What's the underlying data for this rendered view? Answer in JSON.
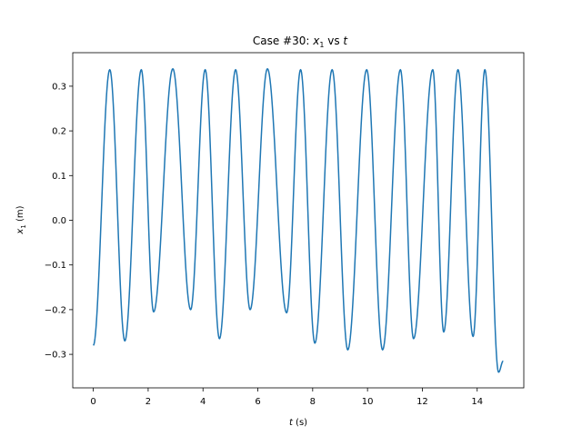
{
  "chart_data": {
    "type": "line",
    "title": {
      "prefix": "Case #30: ",
      "var": "x",
      "sub": "1",
      "mid": " vs ",
      "tvar": "t"
    },
    "xlabel": {
      "var": "t",
      "unit": " (s)"
    },
    "ylabel": {
      "var": "x",
      "sub": "1",
      "unit": " (m)"
    },
    "xlim": [
      -0.75,
      15.7
    ],
    "ylim": [
      -0.375,
      0.375
    ],
    "xticks": [
      0,
      2,
      4,
      6,
      8,
      10,
      12,
      14
    ],
    "xtick_labels": [
      "0",
      "2",
      "4",
      "6",
      "8",
      "10",
      "12",
      "14"
    ],
    "yticks": [
      -0.3,
      -0.2,
      -0.1,
      0.0,
      0.1,
      0.2,
      0.3
    ],
    "ytick_labels": [
      "−0.3",
      "−0.2",
      "−0.1",
      "0.0",
      "0.1",
      "0.2",
      "0.3"
    ],
    "grid": false,
    "legend": "none",
    "color": "#1f77b4",
    "series": [
      {
        "t_start": 0.0,
        "t_end": 14.95,
        "start_value": -0.28,
        "end_value": -0.315,
        "peaks": [
          {
            "t": 0.6,
            "v": 0.337
          },
          {
            "t": 1.75,
            "v": 0.337
          },
          {
            "t": 2.9,
            "v": 0.339
          },
          {
            "t": 4.08,
            "v": 0.337
          },
          {
            "t": 5.19,
            "v": 0.337
          },
          {
            "t": 6.35,
            "v": 0.339
          },
          {
            "t": 7.56,
            "v": 0.337
          },
          {
            "t": 8.71,
            "v": 0.337
          },
          {
            "t": 9.97,
            "v": 0.337
          },
          {
            "t": 11.2,
            "v": 0.337
          },
          {
            "t": 12.38,
            "v": 0.337
          },
          {
            "t": 13.3,
            "v": 0.337
          },
          {
            "t": 14.28,
            "v": 0.337
          }
        ],
        "troughs": [
          {
            "t": 1.15,
            "v": -0.27
          },
          {
            "t": 2.2,
            "v": -0.205
          },
          {
            "t": 3.55,
            "v": -0.2
          },
          {
            "t": 4.6,
            "v": -0.265
          },
          {
            "t": 5.72,
            "v": -0.2
          },
          {
            "t": 7.05,
            "v": -0.207
          },
          {
            "t": 8.08,
            "v": -0.275
          },
          {
            "t": 9.28,
            "v": -0.29
          },
          {
            "t": 10.55,
            "v": -0.29
          },
          {
            "t": 11.68,
            "v": -0.265
          },
          {
            "t": 12.78,
            "v": -0.25
          },
          {
            "t": 13.85,
            "v": -0.26
          },
          {
            "t": 14.78,
            "v": -0.34
          }
        ]
      }
    ]
  }
}
